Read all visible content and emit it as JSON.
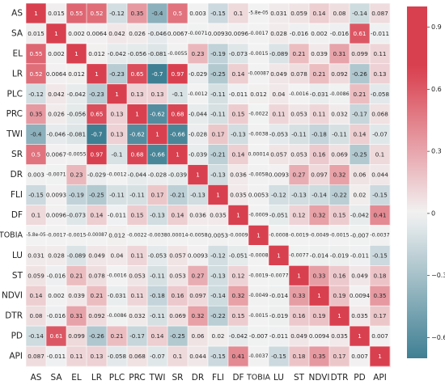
{
  "chart_data": {
    "type": "heatmap",
    "labels": [
      "AS",
      "SA",
      "EL",
      "LR",
      "PLC",
      "PRC",
      "TWI",
      "SR",
      "DR",
      "FLI",
      "DF",
      "TOBIA",
      "LU",
      "ST",
      "NDVI",
      "DTR",
      "PD",
      "API"
    ],
    "cell_labels": [
      [
        "1",
        "0.015",
        "0.55",
        "0.52",
        "-0.12",
        "0.35",
        "-0.4",
        "0.5",
        "0.003",
        "-0.15",
        "0.1",
        "-5.8e-05",
        "0.031",
        "0.059",
        "0.14",
        "0.08",
        "-0.14",
        "0.087"
      ],
      [
        "0.015",
        "1",
        "0.002",
        "0.0064",
        "0.042",
        "0.026",
        "-0.046",
        "0.0067",
        "-0.0071",
        "0.0093",
        "0.0096",
        "-0.0017",
        "0.028",
        "-0.016",
        "0.002",
        "-0.016",
        "0.61",
        "-0.011"
      ],
      [
        "0.55",
        "0.002",
        "1",
        "0.012",
        "-0.042",
        "-0.056",
        "-0.081",
        "-0.0055",
        "0.23",
        "-0.19",
        "-0.073",
        "-0.0015",
        "-0.089",
        "0.21",
        "0.039",
        "0.31",
        "0.099",
        "0.11"
      ],
      [
        "0.52",
        "0.0064",
        "0.012",
        "1",
        "-0.23",
        "0.65",
        "-0.7",
        "0.97",
        "-0.029",
        "-0.25",
        "0.14",
        "-0.00087",
        "0.049",
        "0.078",
        "0.21",
        "0.092",
        "-0.26",
        "0.13"
      ],
      [
        "-0.12",
        "0.042",
        "-0.042",
        "-0.23",
        "1",
        "0.13",
        "0.13",
        "-0.1",
        "-0.0012",
        "-0.11",
        "-0.011",
        "0.012",
        "0.04",
        "-0.0016",
        "-0.031",
        "-0.0086",
        "0.21",
        "-0.058"
      ],
      [
        "0.35",
        "0.026",
        "-0.056",
        "0.65",
        "0.13",
        "1",
        "-0.62",
        "0.68",
        "-0.044",
        "-0.11",
        "0.15",
        "-0.0022",
        "0.11",
        "0.053",
        "0.11",
        "0.032",
        "-0.17",
        "0.068"
      ],
      [
        "-0.4",
        "-0.046",
        "-0.081",
        "-0.7",
        "0.13",
        "-0.62",
        "1",
        "-0.66",
        "-0.028",
        "0.17",
        "-0.13",
        "-0.0038",
        "-0.053",
        "-0.11",
        "-0.18",
        "-0.11",
        "0.14",
        "-0.07"
      ],
      [
        "0.5",
        "0.0067",
        "-0.0055",
        "0.97",
        "-0.1",
        "0.68",
        "-0.66",
        "1",
        "-0.039",
        "-0.21",
        "0.14",
        "0.00014",
        "0.057",
        "0.053",
        "0.16",
        "0.069",
        "-0.25",
        "0.1"
      ],
      [
        "0.003",
        "-0.0071",
        "0.23",
        "-0.029",
        "-0.0012",
        "-0.044",
        "-0.028",
        "-0.039",
        "1",
        "-0.13",
        "0.036",
        "-0.0058",
        "0.0093",
        "0.27",
        "0.097",
        "0.32",
        "0.06",
        "0.044"
      ],
      [
        "-0.15",
        "0.0093",
        "-0.19",
        "-0.25",
        "-0.11",
        "-0.11",
        "0.17",
        "-0.21",
        "-0.13",
        "1",
        "0.035",
        "0.0053",
        "-0.12",
        "-0.13",
        "-0.14",
        "-0.22",
        "0.02",
        "-0.15"
      ],
      [
        "0.1",
        "0.0096",
        "-0.073",
        "0.14",
        "-0.011",
        "0.15",
        "-0.13",
        "0.14",
        "0.036",
        "0.035",
        "1",
        "-0.0009",
        "-0.051",
        "0.12",
        "0.32",
        "0.15",
        "-0.042",
        "0.41"
      ],
      [
        "-5.8e-05",
        "-0.0017",
        "-0.0015",
        "-0.00087",
        "0.012",
        "-0.0022",
        "-0.0038",
        "0.00014",
        "-0.0058",
        "0.0053",
        "-0.0009",
        "1",
        "-0.0008",
        "-0.0019",
        "-0.0049",
        "-0.0015",
        "-0.007",
        "-0.0037"
      ],
      [
        "0.031",
        "0.028",
        "-0.089",
        "0.049",
        "0.04",
        "0.11",
        "-0.053",
        "0.057",
        "0.0093",
        "-0.12",
        "-0.051",
        "-0.0008",
        "1",
        "-0.0077",
        "-0.014",
        "-0.019",
        "-0.011",
        "-0.15"
      ],
      [
        "0.059",
        "-0.016",
        "0.21",
        "0.078",
        "-0.0016",
        "0.053",
        "-0.11",
        "0.053",
        "0.27",
        "-0.13",
        "0.12",
        "-0.0019",
        "-0.0077",
        "1",
        "0.33",
        "0.16",
        "0.049",
        "0.18"
      ],
      [
        "0.14",
        "0.002",
        "0.039",
        "0.21",
        "-0.031",
        "0.11",
        "-0.18",
        "0.16",
        "0.097",
        "-0.14",
        "0.32",
        "-0.0049",
        "-0.014",
        "0.33",
        "1",
        "0.19",
        "0.0094",
        "0.35"
      ],
      [
        "0.08",
        "-0.016",
        "0.31",
        "0.092",
        "-0.0086",
        "0.032",
        "-0.11",
        "0.069",
        "0.32",
        "-0.22",
        "0.15",
        "-0.0015",
        "-0.019",
        "0.16",
        "0.19",
        "1",
        "0.035",
        "0.17"
      ],
      [
        "-0.14",
        "0.61",
        "0.099",
        "-0.26",
        "0.21",
        "-0.17",
        "0.14",
        "-0.25",
        "0.06",
        "0.02",
        "-0.042",
        "-0.007",
        "-0.011",
        "0.049",
        "0.0094",
        "0.035",
        "1",
        "0.007"
      ],
      [
        "0.087",
        "-0.011",
        "0.11",
        "0.13",
        "-0.058",
        "0.068",
        "-0.07",
        "0.1",
        "0.044",
        "-0.15",
        "0.41",
        "-0.0037",
        "-0.15",
        "0.18",
        "0.35",
        "0.17",
        "0.007",
        "1"
      ]
    ],
    "colorbar": {
      "range": [
        -0.7,
        1
      ],
      "ticks": [
        0.9,
        0.6,
        0.3,
        0,
        -0.3,
        -0.6
      ],
      "tick_labels": [
        "0.9",
        "0.6",
        "0.3",
        "0",
        "−0.3",
        "−0.6"
      ],
      "colors": {
        "low": "#3f7f93",
        "mid": "#f2f2f2",
        "high": "#d9404f"
      }
    },
    "grid": true
  }
}
